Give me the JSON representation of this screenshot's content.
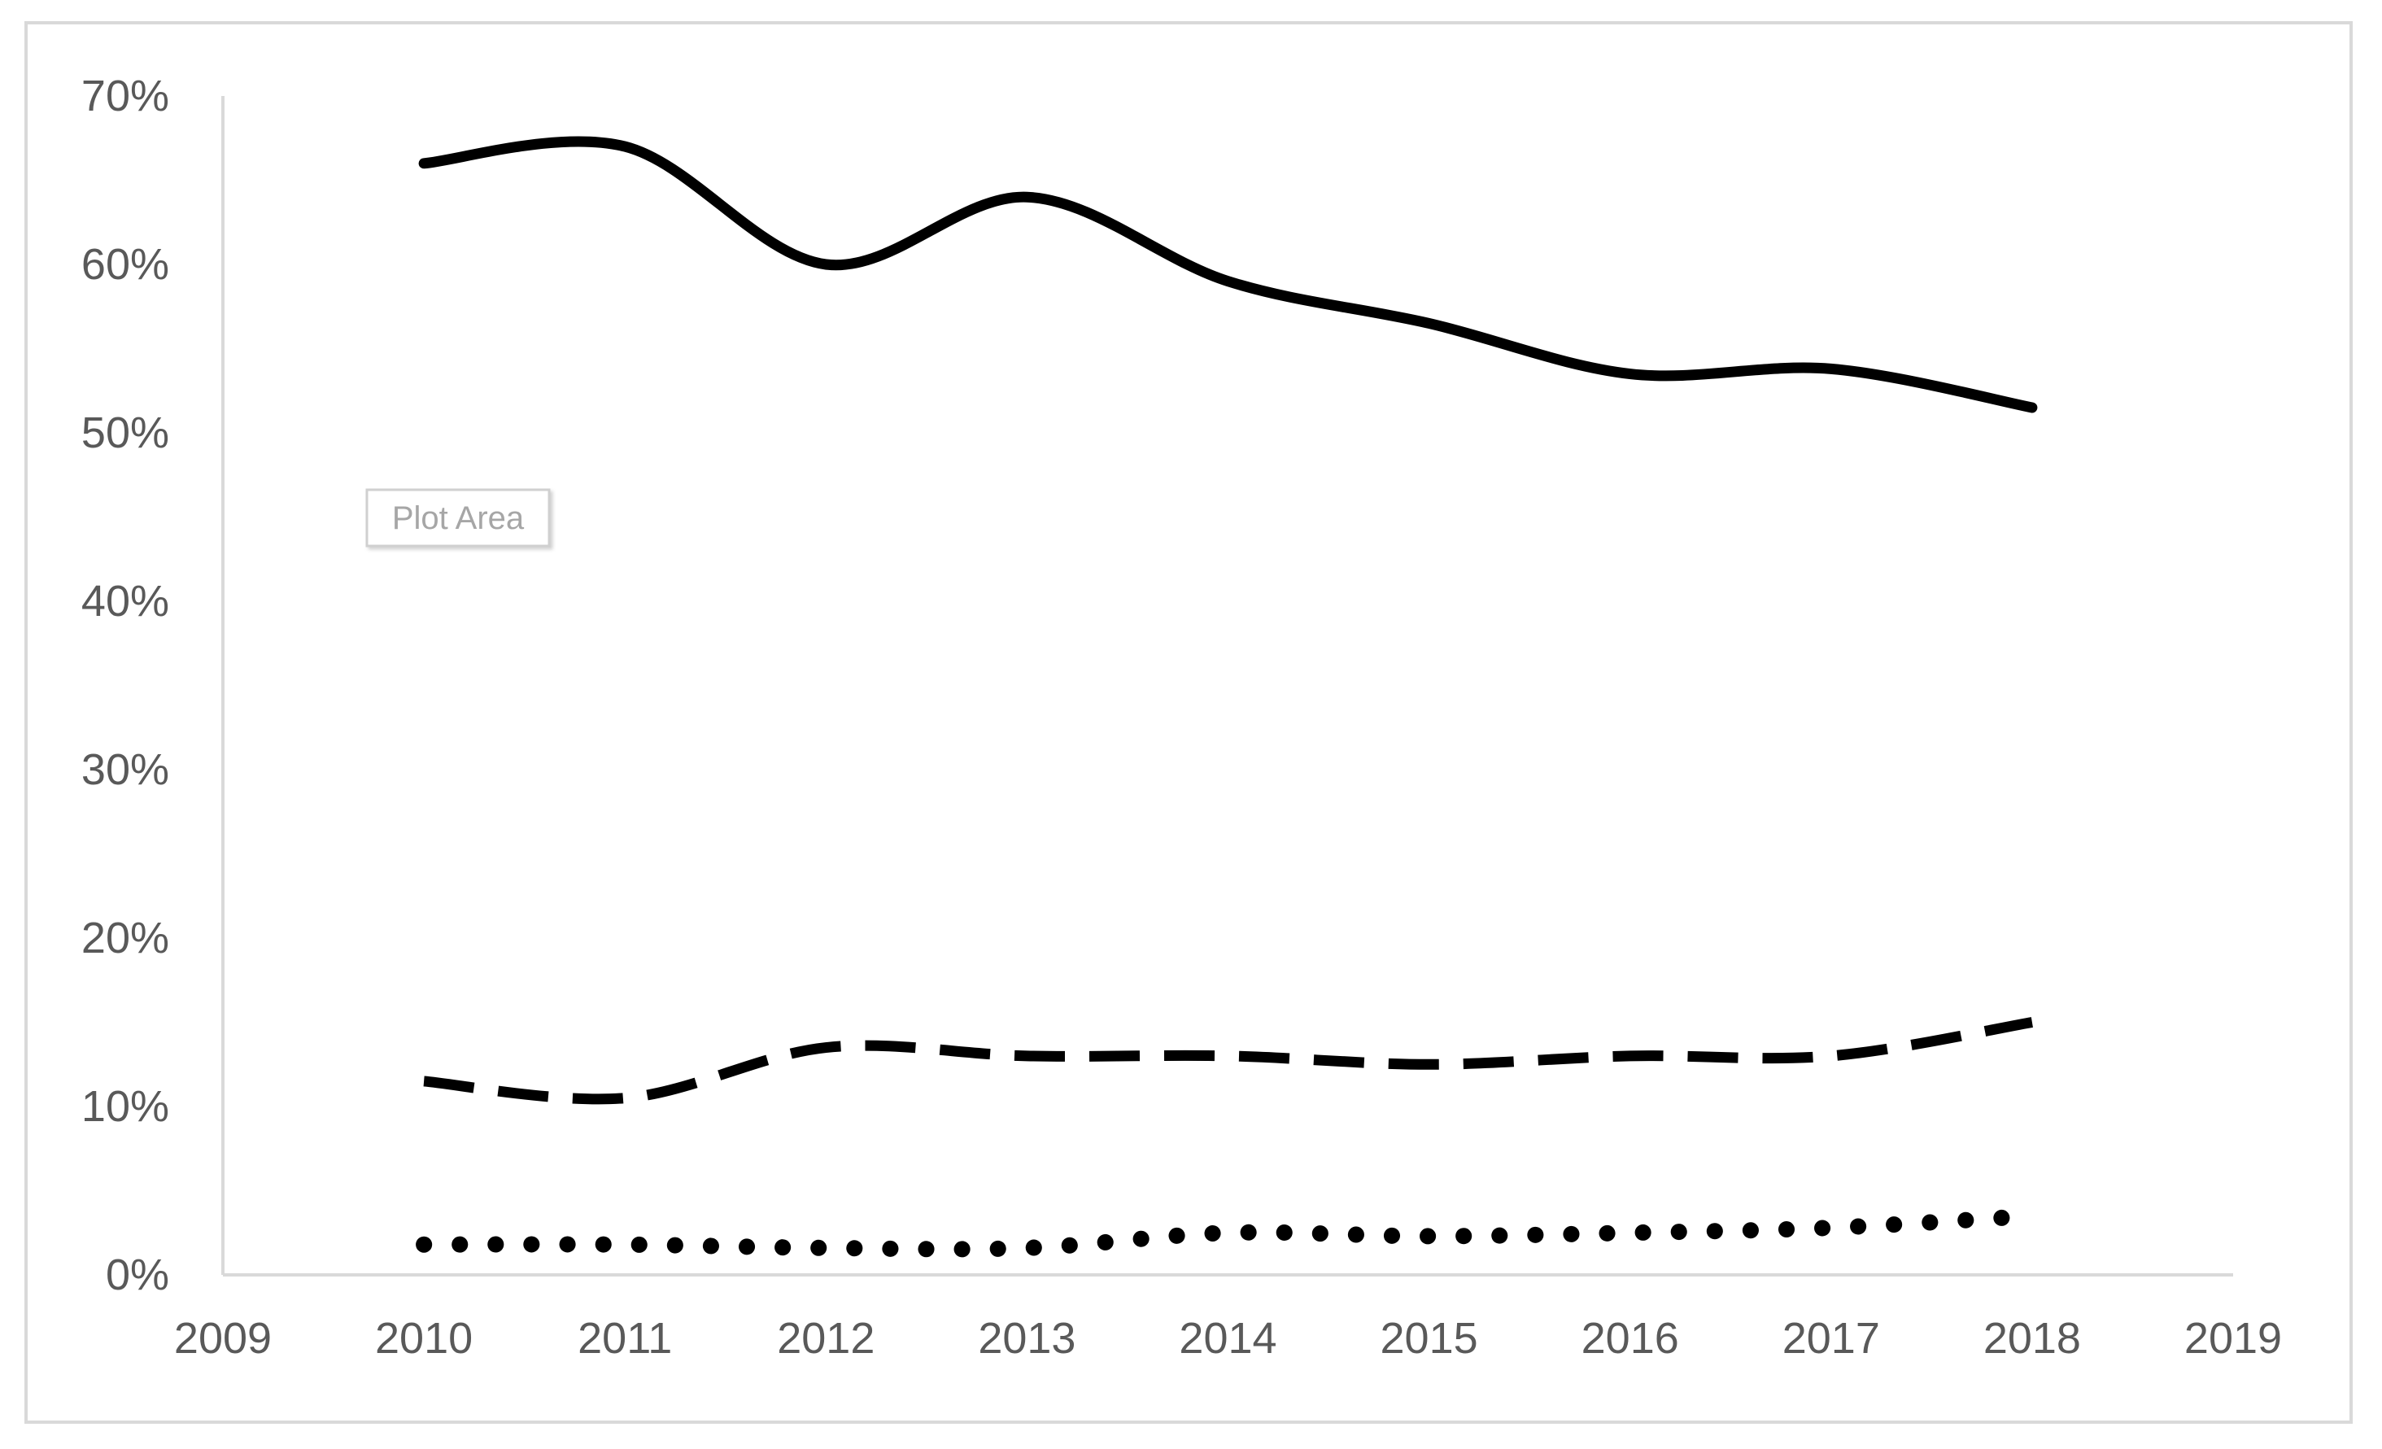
{
  "tooltip": {
    "label": "Plot Area"
  },
  "chart_data": {
    "type": "line",
    "title": "",
    "xlabel": "",
    "ylabel": "",
    "xlim": [
      2009,
      2019
    ],
    "ylim": [
      0,
      0.7
    ],
    "x_ticks": [
      "2009",
      "2010",
      "2011",
      "2012",
      "2013",
      "2014",
      "2015",
      "2016",
      "2017",
      "2018",
      "2019"
    ],
    "y_ticks": [
      "0%",
      "10%",
      "20%",
      "30%",
      "40%",
      "50%",
      "60%",
      "70%"
    ],
    "grid": false,
    "legend": "none",
    "x": [
      2010,
      2011,
      2012,
      2013,
      2014,
      2015,
      2016,
      2017,
      2018
    ],
    "series": [
      {
        "style": "solid",
        "color": "#000000",
        "values": [
          0.66,
          0.67,
          0.6,
          0.64,
          0.59,
          0.565,
          0.535,
          0.538,
          0.515
        ]
      },
      {
        "style": "dashed",
        "color": "#000000",
        "values": [
          0.115,
          0.105,
          0.135,
          0.13,
          0.13,
          0.125,
          0.13,
          0.13,
          0.15
        ]
      },
      {
        "style": "dotted",
        "color": "#000000",
        "values": [
          0.018,
          0.018,
          0.016,
          0.016,
          0.025,
          0.023,
          0.025,
          0.028,
          0.035
        ]
      }
    ]
  }
}
